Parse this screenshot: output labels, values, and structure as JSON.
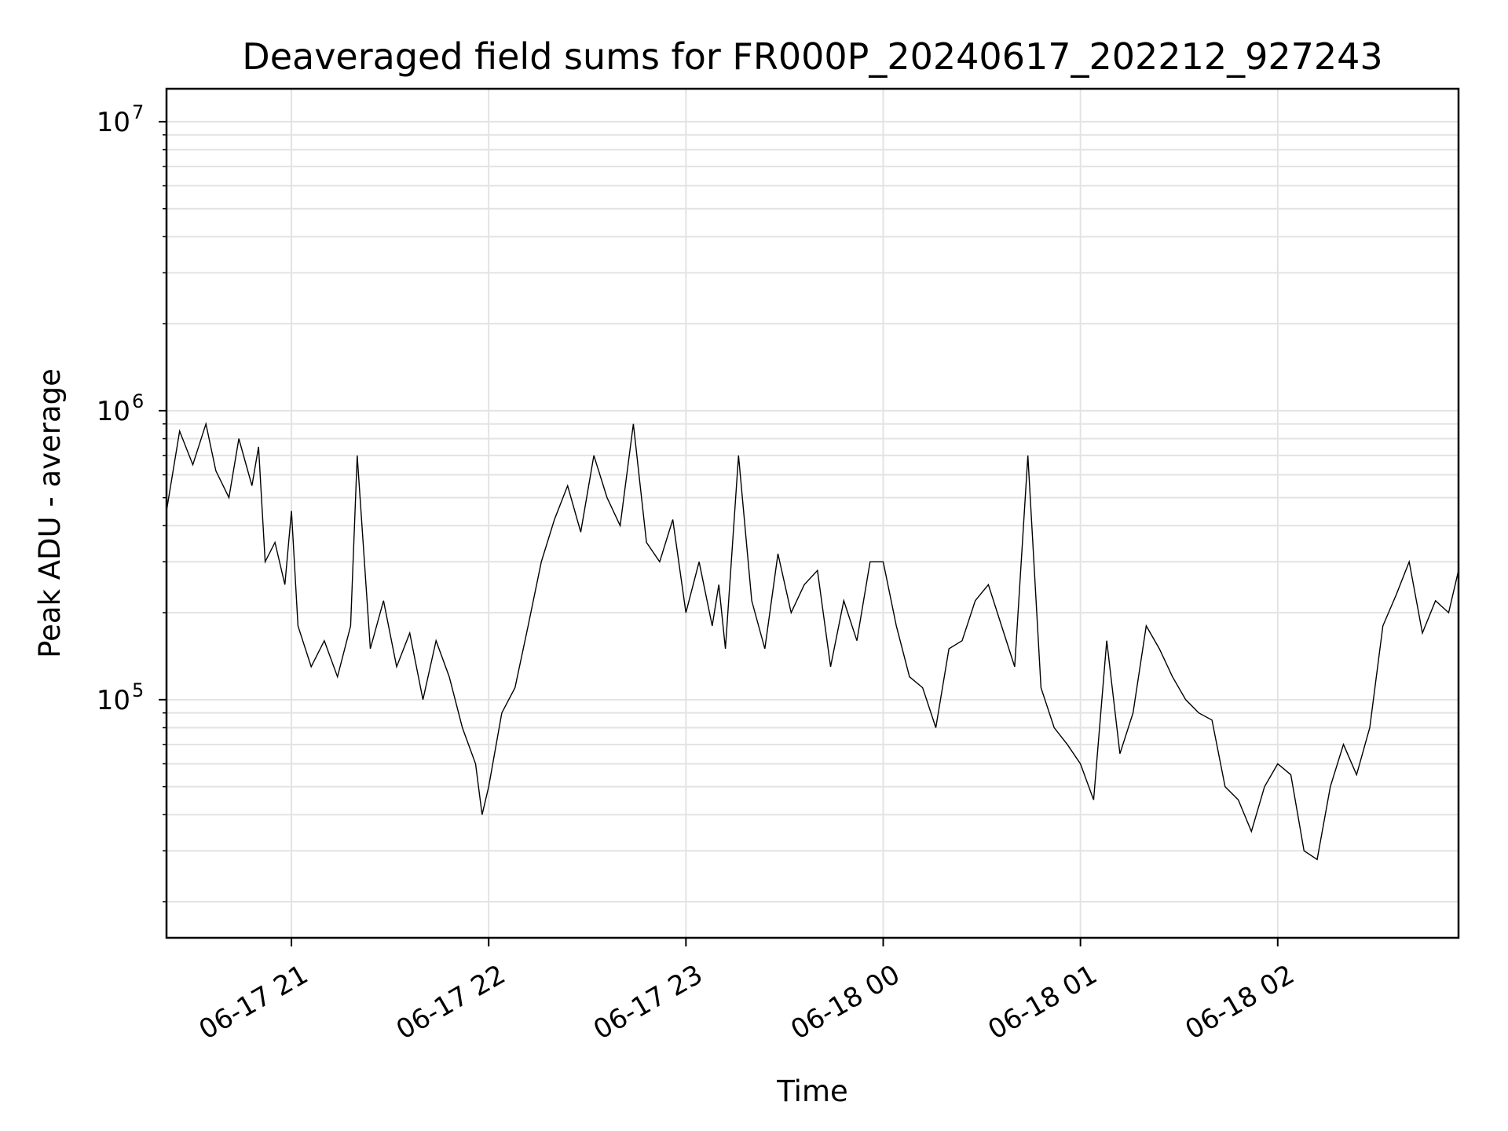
{
  "chart_data": {
    "type": "line",
    "title": "Deaveraged field sums for FR000P_20240617_202212_927243",
    "xlabel": "Time",
    "ylabel": "Peak ADU - average",
    "x_range": [
      "2024-06-17 20:22",
      "2024-06-18 02:55"
    ],
    "ylim": [
      15000,
      13000000
    ],
    "yscale": "log",
    "grid": true,
    "x_ticks": [
      {
        "t": "2024-06-17 21:00",
        "label": "06-17 21"
      },
      {
        "t": "2024-06-17 22:00",
        "label": "06-17 22"
      },
      {
        "t": "2024-06-17 23:00",
        "label": "06-17 23"
      },
      {
        "t": "2024-06-18 00:00",
        "label": "06-18 00"
      },
      {
        "t": "2024-06-18 01:00",
        "label": "06-18 01"
      },
      {
        "t": "2024-06-18 02:00",
        "label": "06-18 02"
      }
    ],
    "y_ticks": [
      {
        "value": 100000,
        "base": "10",
        "exp": "5"
      },
      {
        "value": 1000000,
        "base": "10",
        "exp": "6"
      },
      {
        "value": 10000000,
        "base": "10",
        "exp": "7"
      }
    ],
    "series": [
      {
        "color": "#000000",
        "x": [
          "2024-06-17 20:22",
          "2024-06-17 20:26",
          "2024-06-17 20:30",
          "2024-06-17 20:34",
          "2024-06-17 20:37",
          "2024-06-17 20:41",
          "2024-06-17 20:44",
          "2024-06-17 20:48",
          "2024-06-17 20:50",
          "2024-06-17 20:52",
          "2024-06-17 20:55",
          "2024-06-17 20:58",
          "2024-06-17 21:00",
          "2024-06-17 21:02",
          "2024-06-17 21:06",
          "2024-06-17 21:10",
          "2024-06-17 21:14",
          "2024-06-17 21:18",
          "2024-06-17 21:20",
          "2024-06-17 21:24",
          "2024-06-17 21:28",
          "2024-06-17 21:32",
          "2024-06-17 21:36",
          "2024-06-17 21:40",
          "2024-06-17 21:44",
          "2024-06-17 21:48",
          "2024-06-17 21:52",
          "2024-06-17 21:56",
          "2024-06-17 21:58",
          "2024-06-17 22:00",
          "2024-06-17 22:04",
          "2024-06-17 22:08",
          "2024-06-17 22:12",
          "2024-06-17 22:16",
          "2024-06-17 22:20",
          "2024-06-17 22:24",
          "2024-06-17 22:28",
          "2024-06-17 22:32",
          "2024-06-17 22:36",
          "2024-06-17 22:40",
          "2024-06-17 22:44",
          "2024-06-17 22:48",
          "2024-06-17 22:52",
          "2024-06-17 22:56",
          "2024-06-17 23:00",
          "2024-06-17 23:04",
          "2024-06-17 23:08",
          "2024-06-17 23:10",
          "2024-06-17 23:12",
          "2024-06-17 23:16",
          "2024-06-17 23:20",
          "2024-06-17 23:24",
          "2024-06-17 23:28",
          "2024-06-17 23:32",
          "2024-06-17 23:36",
          "2024-06-17 23:40",
          "2024-06-17 23:44",
          "2024-06-17 23:48",
          "2024-06-17 23:52",
          "2024-06-17 23:56",
          "2024-06-18 00:00",
          "2024-06-18 00:04",
          "2024-06-18 00:08",
          "2024-06-18 00:12",
          "2024-06-18 00:16",
          "2024-06-18 00:20",
          "2024-06-18 00:24",
          "2024-06-18 00:28",
          "2024-06-18 00:32",
          "2024-06-18 00:36",
          "2024-06-18 00:40",
          "2024-06-18 00:44",
          "2024-06-18 00:48",
          "2024-06-18 00:52",
          "2024-06-18 00:56",
          "2024-06-18 01:00",
          "2024-06-18 01:04",
          "2024-06-18 01:08",
          "2024-06-18 01:12",
          "2024-06-18 01:16",
          "2024-06-18 01:20",
          "2024-06-18 01:24",
          "2024-06-18 01:28",
          "2024-06-18 01:32",
          "2024-06-18 01:36",
          "2024-06-18 01:40",
          "2024-06-18 01:44",
          "2024-06-18 01:48",
          "2024-06-18 01:52",
          "2024-06-18 01:56",
          "2024-06-18 02:00",
          "2024-06-18 02:04",
          "2024-06-18 02:08",
          "2024-06-18 02:12",
          "2024-06-18 02:16",
          "2024-06-18 02:20",
          "2024-06-18 02:24",
          "2024-06-18 02:28",
          "2024-06-18 02:32",
          "2024-06-18 02:36",
          "2024-06-18 02:40",
          "2024-06-18 02:44",
          "2024-06-18 02:48",
          "2024-06-18 02:52",
          "2024-06-18 02:55"
        ],
        "values": [
          450000,
          850000,
          650000,
          900000,
          620000,
          500000,
          800000,
          550000,
          750000,
          300000,
          350000,
          250000,
          450000,
          180000,
          130000,
          160000,
          120000,
          180000,
          700000,
          150000,
          220000,
          130000,
          170000,
          100000,
          160000,
          120000,
          80000,
          60000,
          40000,
          50000,
          90000,
          110000,
          180000,
          300000,
          420000,
          550000,
          380000,
          700000,
          500000,
          400000,
          900000,
          350000,
          300000,
          420000,
          200000,
          300000,
          180000,
          250000,
          150000,
          700000,
          220000,
          150000,
          320000,
          200000,
          250000,
          280000,
          130000,
          220000,
          160000,
          300000,
          300000,
          180000,
          120000,
          110000,
          80000,
          150000,
          160000,
          220000,
          250000,
          180000,
          130000,
          700000,
          110000,
          80000,
          70000,
          60000,
          45000,
          160000,
          65000,
          90000,
          180000,
          150000,
          120000,
          100000,
          90000,
          85000,
          50000,
          45000,
          35000,
          50000,
          60000,
          55000,
          30000,
          28000,
          50000,
          70000,
          55000,
          80000,
          180000,
          230000,
          300000,
          170000,
          220000,
          200000,
          280000
        ]
      }
    ]
  }
}
